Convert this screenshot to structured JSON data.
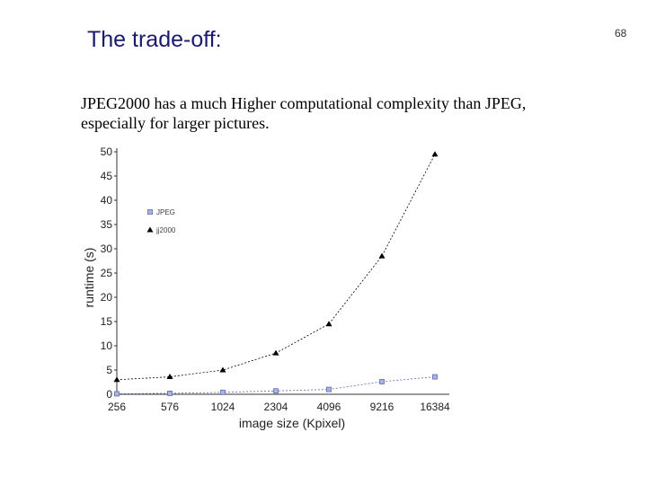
{
  "slide": {
    "title": "The trade-off:",
    "page_number": "68",
    "body_line1": "JPEG2000 has a much Higher computational complexity than JPEG,",
    "body_line2": "especially for larger pictures."
  },
  "chart_data": {
    "type": "line",
    "categories": [
      "256",
      "576",
      "1024",
      "2304",
      "4096",
      "9216",
      "16384"
    ],
    "series": [
      {
        "name": "JPEG",
        "marker": "square",
        "color": "#5a6ab0",
        "values": [
          0.1,
          0.2,
          0.4,
          0.7,
          1.0,
          2.6,
          3.6
        ]
      },
      {
        "name": "jj2000",
        "marker": "triangle",
        "color": "#000000",
        "values": [
          3.0,
          3.6,
          5.0,
          8.5,
          14.5,
          28.5,
          49.5
        ]
      }
    ],
    "xlabel": "image size (Kpixel)",
    "ylabel": "runtime (s)",
    "ylim": [
      0,
      50
    ],
    "yticks": [
      0,
      5,
      10,
      15,
      20,
      25,
      30,
      35,
      40,
      45,
      50
    ],
    "legend_position": "upper-left inside plot",
    "grid": false
  }
}
